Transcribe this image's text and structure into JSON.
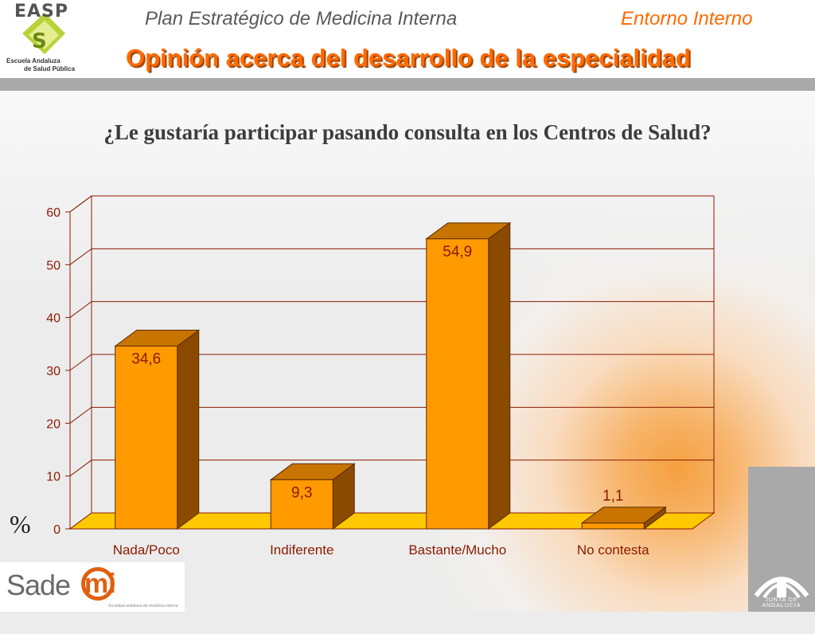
{
  "header": {
    "logo_name": "EASP",
    "logo_sub1": "Escuela Andaluza",
    "logo_sub2": "de Salud Pública",
    "plan_title": "Plan Estratégico de Medicina Interna",
    "section_title": "Entorno Interno",
    "page_title": "Opinión acerca del desarrollo de la especialidad"
  },
  "question": "¿Le gustaría participar pasando consulta en los Centros de Salud?",
  "y_unit_label": "%",
  "footer": {
    "sademi_text": "Sade",
    "sademi_mi": "mi",
    "sademi_sub": "Sociedad andaluza de medicina interna",
    "junta_text": "JUNTA DE ANDALUCIA"
  },
  "colors": {
    "accent": "#ff6a00",
    "bar_front": "#ff9a00",
    "bar_top": "#c87400",
    "bar_side": "#8a4a00",
    "floor": "#ffc800",
    "value_label": "#8b1a00"
  },
  "chart_data": {
    "type": "bar",
    "categories": [
      "Nada/Poco",
      "Indiferente",
      "Bastante/Mucho",
      "No contesta"
    ],
    "values": [
      34.6,
      9.3,
      54.9,
      1.1
    ],
    "value_labels": [
      "34,6",
      "9,3",
      "54,9",
      "1,1"
    ],
    "ylim": [
      0,
      60
    ],
    "yticks": [
      0,
      10,
      20,
      30,
      40,
      50,
      60
    ],
    "ylabel": "%",
    "grid": true,
    "style": "3d"
  }
}
